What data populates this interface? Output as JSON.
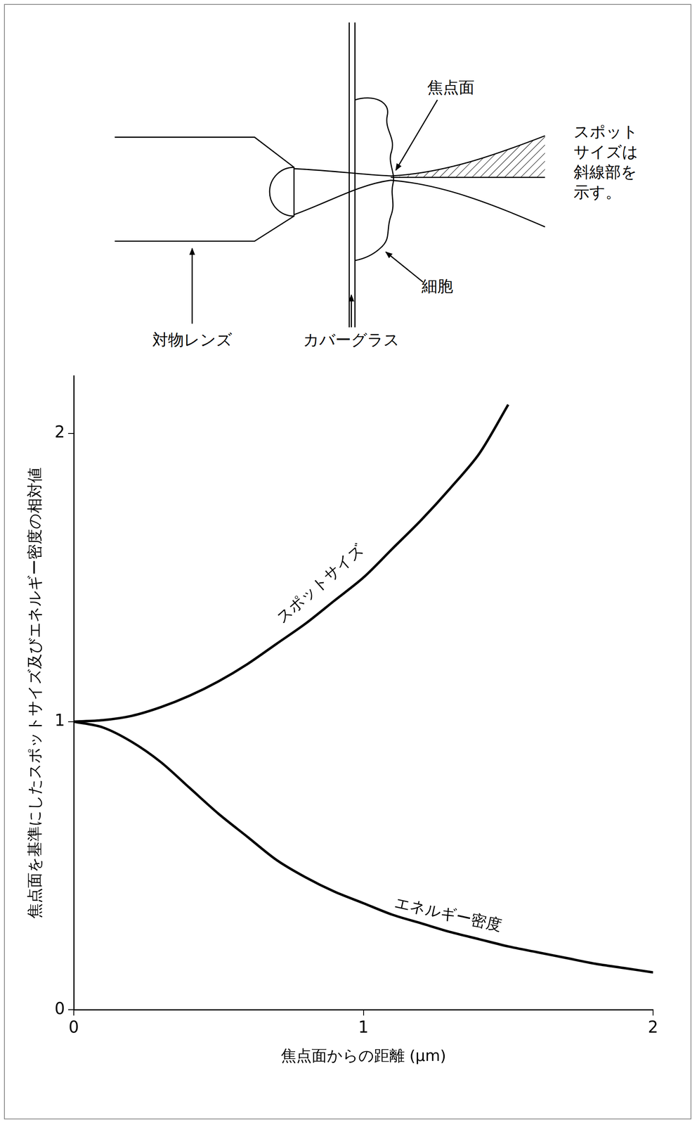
{
  "diagram": {
    "focal_plane": "焦点面",
    "note": "スポットサイズは斜線部を示す。",
    "objective": "対物レンズ",
    "cover_glass": "カバーグラス",
    "cell": "細胞"
  },
  "chart_data": {
    "type": "line",
    "x_label": "焦点面からの距離 (μm)",
    "y_label": "焦点面を基準にしたスポットサイズ及びエネルギー密度の相対値",
    "x": [
      0,
      0.1,
      0.2,
      0.3,
      0.4,
      0.5,
      0.6,
      0.7,
      0.8,
      0.9,
      1.0,
      1.1,
      1.2,
      1.3,
      1.4,
      1.5,
      1.6,
      1.7,
      1.8,
      1.9,
      2.0
    ],
    "series": [
      {
        "name": "スポットサイズ",
        "color": "#000000",
        "values": [
          1.0,
          1.005,
          1.02,
          1.05,
          1.09,
          1.14,
          1.2,
          1.27,
          1.34,
          1.42,
          1.5,
          1.6,
          1.7,
          1.81,
          1.93,
          2.1,
          null,
          null,
          null,
          null,
          null
        ]
      },
      {
        "name": "エネルギー密度",
        "color": "#000000",
        "values": [
          1.0,
          0.98,
          0.93,
          0.86,
          0.77,
          0.68,
          0.6,
          0.52,
          0.46,
          0.41,
          0.37,
          0.33,
          0.3,
          0.27,
          0.245,
          0.22,
          0.2,
          0.18,
          0.16,
          0.145,
          0.13
        ]
      }
    ],
    "xlim": [
      0,
      2
    ],
    "xticks": [
      0,
      1,
      2
    ],
    "ylim": [
      0,
      2.2
    ],
    "yticks": [
      0,
      1,
      2
    ],
    "grid": false
  }
}
